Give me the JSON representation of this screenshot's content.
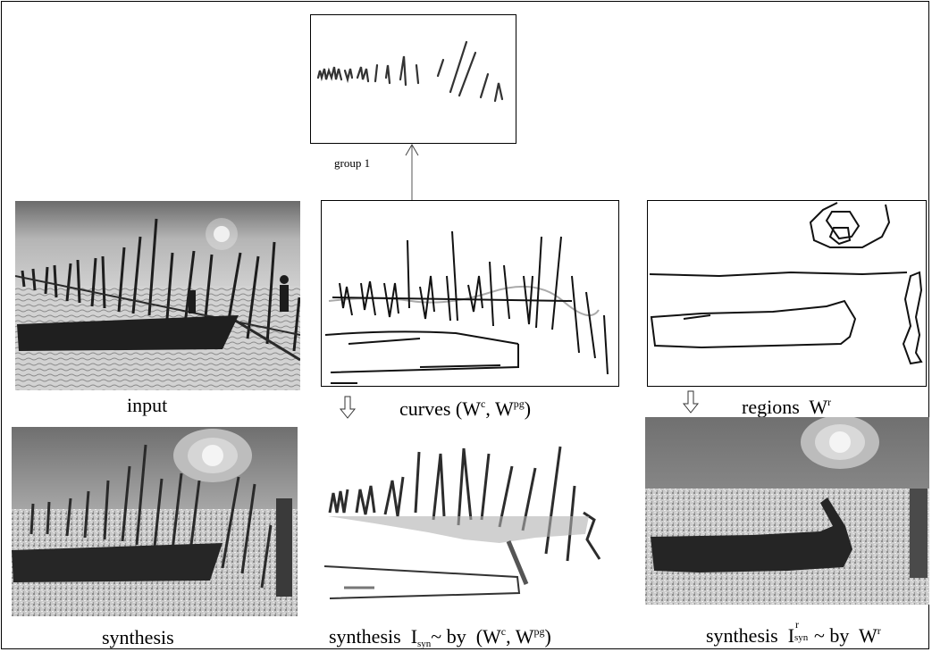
{
  "captions": {
    "group_label": "group 1",
    "input": "input",
    "curves_prefix": "curves",
    "curves_W": "W",
    "curves_c": "c",
    "curves_pg": "pg",
    "regions_prefix": "regions",
    "regions_W": "W",
    "regions_r": "r",
    "synthesis": "synthesis",
    "syn2_prefix": "synthesis",
    "syn2_I": "I",
    "syn2_sub": "syn",
    "syn2_by": "~ by",
    "syn2_W": "W",
    "syn2_c": "c",
    "syn2_pg": "pg",
    "syn3_prefix": "synthesis",
    "syn3_I": "I",
    "syn3_sup": "r",
    "syn3_sub": "syn",
    "syn3_by": "~ by",
    "syn3_W": "W",
    "syn3_r": "r"
  },
  "colors": {
    "sky_dark": "#6e6e6e",
    "sky_light": "#b9b9b9",
    "water": "#cfcfcf",
    "boat": "#222222",
    "sun": "#f4f4f4"
  }
}
